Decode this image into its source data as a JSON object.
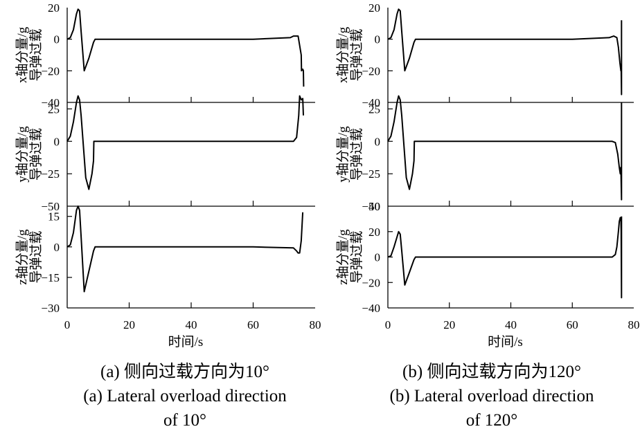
{
  "chart_data": [
    {
      "type": "line",
      "x_label": "时间/s",
      "x_ticks": [
        0,
        20,
        40,
        60,
        80
      ],
      "xlim": [
        0,
        80
      ],
      "caption_cn": "(a) 侧向过载方向为10°",
      "caption_en_line1": "(a) Lateral overload direction",
      "caption_en_line2": "of 10°",
      "subplots": [
        {
          "axis_var": "x",
          "ylabel_line1": "x轴分量/g",
          "ylabel_line2": "导弹过载",
          "ylim": [
            -40,
            20
          ],
          "yticks": [
            20,
            0,
            -20,
            -40
          ],
          "series": [
            {
              "x": [
                0,
                1,
                2,
                3,
                3.5,
                4,
                4.5,
                5.5,
                7,
                8.5,
                9,
                30,
                60,
                72,
                73,
                74.5,
                75.5,
                75.6,
                76,
                76.2,
                76.3
              ],
              "y": [
                0,
                1,
                6,
                16,
                19,
                18,
                5,
                -20,
                -12,
                -2,
                0,
                0,
                0,
                1,
                2,
                2,
                -10,
                -20,
                -19,
                -20,
                -30
              ]
            }
          ]
        },
        {
          "axis_var": "y",
          "ylabel_line1": "y轴分量/g",
          "ylabel_line2": "导弹过载",
          "ylim": [
            -50,
            30
          ],
          "yticks": [
            25,
            0,
            -25,
            -50
          ],
          "series": [
            {
              "x": [
                0,
                1,
                2,
                3,
                3.5,
                4,
                4.5,
                6,
                7,
                8,
                8.5,
                8.6,
                30,
                60,
                73,
                74,
                74.7,
                75,
                75.5,
                76,
                76.2
              ],
              "y": [
                0,
                4,
                15,
                30,
                35,
                32,
                20,
                -28,
                -37,
                -25,
                -15,
                0,
                0,
                0,
                0,
                3,
                20,
                35,
                32,
                33,
                20
              ]
            }
          ]
        },
        {
          "axis_var": "z",
          "ylabel_line1": "z轴分量/g",
          "ylabel_line2": "导弹过载",
          "ylim": [
            -30,
            20
          ],
          "yticks": [
            15,
            0,
            -15,
            -30
          ],
          "series": [
            {
              "x": [
                0,
                1,
                2,
                3,
                3.5,
                4,
                4.5,
                5.5,
                7,
                8.5,
                9,
                30,
                60,
                73,
                74,
                74.5,
                75,
                75.5,
                76
              ],
              "y": [
                0,
                1,
                7,
                18,
                20,
                18,
                5,
                -22,
                -12,
                -2,
                0,
                0,
                0,
                -0.5,
                -2,
                -3,
                -3,
                3,
                17
              ]
            }
          ]
        }
      ]
    },
    {
      "type": "line",
      "x_label": "时间/s",
      "x_ticks": [
        0,
        20,
        40,
        60,
        80
      ],
      "xlim": [
        0,
        80
      ],
      "caption_cn": "(b) 侧向过载方向为120°",
      "caption_en_line1": "(b) Lateral overload direction",
      "caption_en_line2": "of 120°",
      "subplots": [
        {
          "axis_var": "x",
          "ylabel_line1": "x轴分量/g",
          "ylabel_line2": "导弹过载",
          "ylim": [
            -40,
            20
          ],
          "yticks": [
            20,
            0,
            -20,
            -40
          ],
          "series": [
            {
              "x": [
                0,
                1,
                2,
                3,
                3.5,
                4,
                4.5,
                5.5,
                7,
                8.5,
                9,
                30,
                60,
                72,
                73.5,
                74.5,
                75,
                75.5,
                75.8,
                75.9,
                76,
                76
              ],
              "y": [
                0,
                1,
                6,
                16,
                19,
                18,
                5,
                -20,
                -12,
                -2,
                0,
                0,
                0,
                1,
                2,
                1,
                -5,
                -15,
                -20,
                -18,
                -35,
                12
              ]
            }
          ]
        },
        {
          "axis_var": "y",
          "ylabel_line1": "y轴分量/g",
          "ylabel_line2": "导弹过载",
          "ylim": [
            -50,
            30
          ],
          "yticks": [
            25,
            0,
            -25,
            -50
          ],
          "series": [
            {
              "x": [
                0,
                1,
                2,
                3,
                3.5,
                4,
                4.5,
                6,
                7,
                8,
                8.5,
                8.6,
                30,
                60,
                73,
                74,
                74.8,
                75.3,
                75.6,
                75.8,
                76,
                76
              ],
              "y": [
                0,
                4,
                15,
                30,
                35,
                32,
                20,
                -28,
                -37,
                -25,
                -15,
                0,
                0,
                0,
                0,
                -1,
                -10,
                -20,
                -25,
                -20,
                -45,
                30
              ]
            }
          ]
        },
        {
          "axis_var": "z",
          "ylabel_line1": "z轴分量/g",
          "ylabel_line2": "导弹过载",
          "ylim": [
            -40,
            40
          ],
          "yticks": [
            40,
            20,
            0,
            -20,
            -40
          ],
          "series": [
            {
              "x": [
                0,
                1,
                2,
                3,
                3.5,
                4,
                4.5,
                5.5,
                7,
                8.5,
                9,
                30,
                60,
                73,
                74,
                74.5,
                75,
                75.3,
                75.6,
                75.8,
                75.9,
                76,
                76
              ],
              "y": [
                0,
                1,
                8,
                16,
                20,
                18,
                5,
                -22,
                -12,
                -2,
                0,
                0,
                0,
                0,
                2,
                8,
                20,
                28,
                31,
                30,
                20,
                -32,
                32
              ]
            }
          ]
        }
      ]
    }
  ]
}
